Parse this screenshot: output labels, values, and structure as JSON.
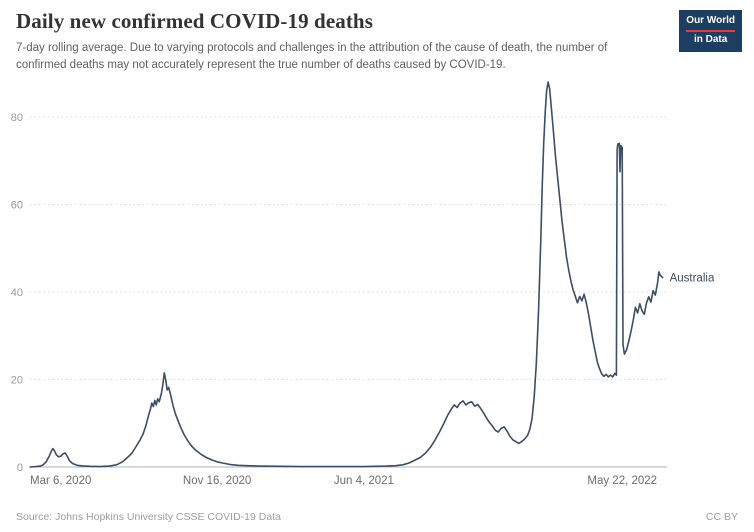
{
  "header": {
    "title": "Daily new confirmed COVID-19 deaths",
    "subtitle": "7-day rolling average. Due to varying protocols and challenges in the attribution of the cause of death, the number of confirmed deaths may not accurately represent the true number of deaths caused by COVID-19.",
    "logo": {
      "line1": "Our World",
      "line2": "in Data"
    }
  },
  "footer": {
    "source": "Source: Johns Hopkins University CSSE COVID-19 Data",
    "license": "CC BY"
  },
  "colors": {
    "line": "#3C4E66",
    "logo_bg": "#1d3d63",
    "logo_accent": "#e63e31",
    "grid": "#dadada",
    "axis_baseline": "#b3b3b3"
  },
  "chart_data": {
    "type": "line",
    "title": "Daily new confirmed COVID-19 deaths",
    "subtitle": "7-day rolling average.",
    "xlabel": "",
    "ylabel": "",
    "x_unit": "days since 2020-03-06",
    "x_domain": [
      0,
      868
    ],
    "x_ticks": [
      {
        "t": 0,
        "label": "Mar 6, 2020"
      },
      {
        "t": 255,
        "label": "Nov 16, 2020"
      },
      {
        "t": 455,
        "label": "Jun 4, 2021"
      },
      {
        "t": 807,
        "label": "May 22, 2022"
      }
    ],
    "y_domain": [
      0,
      88
    ],
    "y_ticks": [
      0,
      20,
      40,
      60,
      80
    ],
    "grid": "horizontal-dotted",
    "legend": "line-end-label",
    "series": [
      {
        "name": "Australia",
        "color": "#3C4E66",
        "points": [
          [
            0,
            0
          ],
          [
            8,
            0.1
          ],
          [
            14,
            0.2
          ],
          [
            18,
            0.5
          ],
          [
            22,
            1.2
          ],
          [
            26,
            2.4
          ],
          [
            29,
            3.6
          ],
          [
            31,
            4.2
          ],
          [
            33,
            3.8
          ],
          [
            36,
            2.8
          ],
          [
            39,
            2.3
          ],
          [
            42,
            2.5
          ],
          [
            45,
            3
          ],
          [
            48,
            3.2
          ],
          [
            51,
            2.4
          ],
          [
            54,
            1.4
          ],
          [
            58,
            0.8
          ],
          [
            64,
            0.4
          ],
          [
            72,
            0.25
          ],
          [
            82,
            0.15
          ],
          [
            95,
            0.1
          ],
          [
            108,
            0.2
          ],
          [
            118,
            0.5
          ],
          [
            126,
            1.2
          ],
          [
            133,
            2.2
          ],
          [
            139,
            3.2
          ],
          [
            145,
            4.8
          ],
          [
            150,
            6.2
          ],
          [
            154,
            7.5
          ],
          [
            158,
            9.5
          ],
          [
            161,
            11.5
          ],
          [
            164,
            13.2
          ],
          [
            166,
            14.6
          ],
          [
            168,
            13.8
          ],
          [
            170,
            15.2
          ],
          [
            172,
            14.2
          ],
          [
            174,
            15.6
          ],
          [
            176,
            14.9
          ],
          [
            179,
            16.8
          ],
          [
            181,
            18.8
          ],
          [
            183,
            21.5
          ],
          [
            185,
            19.8
          ],
          [
            187,
            17.6
          ],
          [
            189,
            18.2
          ],
          [
            192,
            16.2
          ],
          [
            195,
            14
          ],
          [
            198,
            12.2
          ],
          [
            202,
            10.5
          ],
          [
            206,
            8.8
          ],
          [
            210,
            7.4
          ],
          [
            215,
            6
          ],
          [
            220,
            4.8
          ],
          [
            226,
            3.8
          ],
          [
            233,
            2.9
          ],
          [
            240,
            2.2
          ],
          [
            248,
            1.6
          ],
          [
            255,
            1.2
          ],
          [
            263,
            0.9
          ],
          [
            272,
            0.6
          ],
          [
            283,
            0.4
          ],
          [
            296,
            0.3
          ],
          [
            315,
            0.2
          ],
          [
            340,
            0.15
          ],
          [
            370,
            0.1
          ],
          [
            400,
            0.08
          ],
          [
            430,
            0.08
          ],
          [
            455,
            0.1
          ],
          [
            470,
            0.15
          ],
          [
            485,
            0.2
          ],
          [
            498,
            0.3
          ],
          [
            508,
            0.5
          ],
          [
            516,
            0.9
          ],
          [
            524,
            1.5
          ],
          [
            532,
            2.2
          ],
          [
            539,
            3.2
          ],
          [
            546,
            4.6
          ],
          [
            552,
            6.2
          ],
          [
            558,
            8
          ],
          [
            564,
            10
          ],
          [
            569,
            11.8
          ],
          [
            574,
            13.2
          ],
          [
            578,
            14.2
          ],
          [
            582,
            13.6
          ],
          [
            586,
            14.6
          ],
          [
            590,
            15.1
          ],
          [
            594,
            14.2
          ],
          [
            598,
            14.7
          ],
          [
            602,
            14.9
          ],
          [
            606,
            13.9
          ],
          [
            610,
            14.3
          ],
          [
            614,
            13.4
          ],
          [
            618,
            12.4
          ],
          [
            622,
            11.2
          ],
          [
            626,
            10.2
          ],
          [
            630,
            9.4
          ],
          [
            634,
            8.4
          ],
          [
            638,
            8
          ],
          [
            642,
            8.8
          ],
          [
            646,
            9.2
          ],
          [
            650,
            8.2
          ],
          [
            654,
            7
          ],
          [
            658,
            6.2
          ],
          [
            662,
            5.8
          ],
          [
            666,
            5.4
          ],
          [
            670,
            5.8
          ],
          [
            674,
            6.4
          ],
          [
            678,
            7.2
          ],
          [
            681,
            8.6
          ],
          [
            684,
            11
          ],
          [
            687,
            16
          ],
          [
            690,
            24
          ],
          [
            693,
            36
          ],
          [
            696,
            52
          ],
          [
            698,
            64
          ],
          [
            700,
            74
          ],
          [
            702,
            81
          ],
          [
            704,
            86
          ],
          [
            706,
            88
          ],
          [
            708,
            86.5
          ],
          [
            710,
            83
          ],
          [
            713,
            77
          ],
          [
            716,
            71
          ],
          [
            719,
            66
          ],
          [
            722,
            61
          ],
          [
            725,
            56
          ],
          [
            728,
            52
          ],
          [
            731,
            48
          ],
          [
            734,
            45
          ],
          [
            737,
            42.5
          ],
          [
            740,
            40.5
          ],
          [
            743,
            39
          ],
          [
            746,
            37.5
          ],
          [
            749,
            39
          ],
          [
            752,
            38
          ],
          [
            755,
            39.5
          ],
          [
            758,
            37.5
          ],
          [
            761,
            35
          ],
          [
            764,
            32
          ],
          [
            767,
            29
          ],
          [
            770,
            26.5
          ],
          [
            773,
            24
          ],
          [
            776,
            22.5
          ],
          [
            779,
            21.3
          ],
          [
            782,
            20.7
          ],
          [
            785,
            21.2
          ],
          [
            788,
            20.6
          ],
          [
            791,
            21
          ],
          [
            794,
            20.6
          ],
          [
            797,
            21.4
          ],
          [
            799,
            21
          ],
          [
            800,
            72.5
          ],
          [
            801,
            73.8
          ],
          [
            803,
            74
          ],
          [
            804,
            67.5
          ],
          [
            805,
            73.5
          ],
          [
            807,
            73
          ],
          [
            808,
            28
          ],
          [
            810,
            25.8
          ],
          [
            813,
            26.8
          ],
          [
            816,
            28.8
          ],
          [
            819,
            31
          ],
          [
            822,
            33.5
          ],
          [
            825,
            36.5
          ],
          [
            828,
            35.2
          ],
          [
            831,
            37.3
          ],
          [
            834,
            35.7
          ],
          [
            837,
            34.9
          ],
          [
            840,
            37.5
          ],
          [
            843,
            38.9
          ],
          [
            846,
            37.7
          ],
          [
            849,
            40.3
          ],
          [
            852,
            39.3
          ],
          [
            855,
            42
          ],
          [
            857,
            44.6
          ],
          [
            859,
            43.8
          ],
          [
            862,
            43.3
          ]
        ]
      }
    ]
  }
}
